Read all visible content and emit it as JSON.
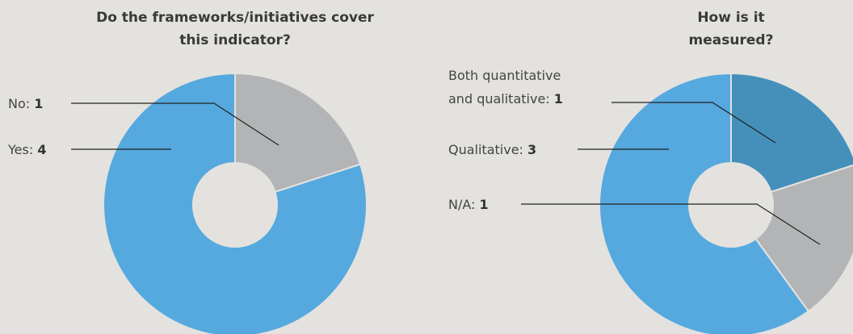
{
  "chart_data": [
    {
      "type": "pie",
      "title": "Do the frameworks/initiatives cover this indicator?",
      "categories": [
        "No:",
        "Yes:"
      ],
      "values": [
        1,
        4
      ],
      "colors": [
        "#b2b4b6",
        "#55a9de"
      ]
    },
    {
      "type": "pie",
      "title": "How is it measured?",
      "categories": [
        "Both quantitative and qualitative:",
        "N/A:",
        "Qualitative:"
      ],
      "values": [
        1,
        1,
        3
      ],
      "colors": [
        "#4490bb",
        "#b2b4b6",
        "#55a9de"
      ]
    }
  ]
}
